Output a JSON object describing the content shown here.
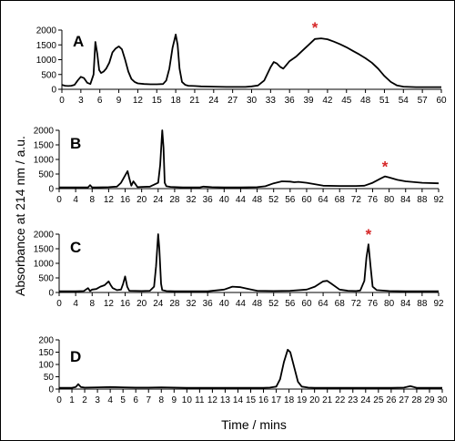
{
  "figure": {
    "ylabel": "Absorbance at 214 nm / a.u.",
    "xlabel": "Time / mins",
    "marker_color": "#d62728",
    "line_color": "#000000"
  },
  "chart_data": [
    {
      "type": "line",
      "panel": "A",
      "xlim": [
        0,
        60
      ],
      "ylim": [
        0,
        2000
      ],
      "xticks": [
        0,
        3,
        6,
        9,
        12,
        15,
        18,
        21,
        24,
        27,
        30,
        33,
        36,
        39,
        42,
        45,
        48,
        51,
        54,
        57,
        60
      ],
      "xtick_labels": [
        "0",
        "3",
        "6",
        "9",
        "12",
        "15",
        "18",
        "21",
        "24",
        "27",
        "30",
        "33",
        "36",
        "39",
        "42",
        "45",
        "48",
        "51",
        "54",
        "57",
        "60"
      ],
      "yticks": [
        0,
        500,
        1000,
        1500,
        2000
      ],
      "ytick_labels": [
        "0",
        "500",
        "1000",
        "1500",
        "2000"
      ],
      "marker": {
        "symbol": "*",
        "x": 40,
        "y": 1750
      },
      "series": [
        {
          "x": [
            0,
            0.5,
            1,
            1.5,
            2,
            2.5,
            3,
            3.5,
            4,
            4.5,
            5,
            5.3,
            5.6,
            5.9,
            6.2,
            6.6,
            7,
            7.5,
            8,
            8.5,
            9,
            9.5,
            10,
            10.5,
            11,
            11.5,
            12,
            13,
            14,
            15,
            16,
            16.5,
            17,
            17.5,
            18,
            18.3,
            18.6,
            19,
            19.5,
            20,
            21,
            22,
            24,
            26,
            28,
            29,
            30,
            31,
            32,
            33,
            33.5,
            34,
            34.5,
            35,
            35.5,
            36,
            37,
            38,
            39,
            40,
            41,
            42,
            43,
            44,
            45,
            46,
            47,
            48,
            49,
            50,
            51,
            52,
            53,
            54,
            55,
            56,
            57,
            58,
            59,
            60
          ],
          "y": [
            150,
            120,
            110,
            120,
            150,
            300,
            420,
            380,
            220,
            180,
            500,
            1600,
            1200,
            650,
            550,
            600,
            700,
            900,
            1250,
            1380,
            1450,
            1350,
            1000,
            600,
            350,
            250,
            200,
            180,
            170,
            170,
            180,
            300,
            700,
            1400,
            1850,
            1500,
            700,
            250,
            150,
            120,
            110,
            100,
            90,
            80,
            80,
            80,
            100,
            130,
            300,
            750,
            920,
            870,
            760,
            700,
            820,
            950,
            1100,
            1300,
            1500,
            1700,
            1720,
            1690,
            1610,
            1520,
            1420,
            1300,
            1180,
            1050,
            900,
            700,
            450,
            250,
            130,
            90,
            80,
            75,
            75,
            75,
            75,
            75
          ]
        }
      ]
    },
    {
      "type": "line",
      "panel": "B",
      "xlim": [
        0,
        92
      ],
      "ylim": [
        0,
        2000
      ],
      "xticks": [
        0,
        4,
        8,
        12,
        16,
        20,
        24,
        28,
        32,
        36,
        40,
        44,
        48,
        52,
        56,
        60,
        64,
        68,
        72,
        76,
        80,
        84,
        88,
        92
      ],
      "xtick_labels": [
        "0",
        "4",
        "8",
        "12",
        "16",
        "20",
        "24",
        "28",
        "32",
        "36",
        "40",
        "44",
        "48",
        "52",
        "56",
        "60",
        "64",
        "68",
        "72",
        "76",
        "80",
        "84",
        "88",
        "92"
      ],
      "yticks": [
        0,
        500,
        1000,
        1500,
        2000
      ],
      "ytick_labels": [
        "0",
        "500",
        "1000",
        "1500",
        "2000"
      ],
      "marker": {
        "symbol": "*",
        "x": 79,
        "y": 420
      },
      "series": [
        {
          "x": [
            0,
            4,
            7,
            7.5,
            8,
            9,
            12,
            14,
            15,
            16,
            16.6,
            17,
            17.5,
            18,
            18.5,
            19,
            20,
            22,
            24,
            24.5,
            25,
            25.3,
            25.6,
            26,
            27,
            30,
            34,
            35,
            37,
            40,
            44,
            48,
            50,
            52,
            54,
            56,
            57,
            58,
            60,
            64,
            68,
            72,
            74,
            76,
            78,
            79,
            80,
            82,
            84,
            88,
            92
          ],
          "y": [
            40,
            40,
            40,
            120,
            40,
            40,
            50,
            70,
            200,
            450,
            600,
            350,
            100,
            250,
            150,
            50,
            60,
            70,
            200,
            800,
            2000,
            1400,
            200,
            80,
            60,
            40,
            40,
            70,
            50,
            40,
            40,
            50,
            80,
            180,
            250,
            240,
            220,
            230,
            200,
            100,
            90,
            90,
            100,
            200,
            350,
            420,
            380,
            300,
            250,
            200,
            180
          ]
        }
      ]
    },
    {
      "type": "line",
      "panel": "C",
      "xlim": [
        0,
        92
      ],
      "ylim": [
        0,
        2000
      ],
      "xticks": [
        0,
        4,
        8,
        12,
        16,
        20,
        24,
        28,
        32,
        36,
        40,
        44,
        48,
        52,
        56,
        60,
        64,
        68,
        72,
        76,
        80,
        84,
        88,
        92
      ],
      "xtick_labels": [
        "0",
        "4",
        "8",
        "12",
        "16",
        "20",
        "24",
        "28",
        "32",
        "36",
        "40",
        "44",
        "48",
        "52",
        "56",
        "60",
        "64",
        "68",
        "72",
        "76",
        "80",
        "84",
        "88",
        "92"
      ],
      "yticks": [
        0,
        500,
        1000,
        1500,
        2000
      ],
      "ytick_labels": [
        "0",
        "500",
        "1000",
        "1500",
        "2000"
      ],
      "marker": {
        "symbol": "*",
        "x": 75,
        "y": 1650
      },
      "series": [
        {
          "x": [
            0,
            4,
            6,
            7,
            7.5,
            8,
            9,
            10,
            11,
            12,
            12.5,
            13,
            14,
            15,
            15.5,
            16,
            16.5,
            17,
            20,
            22,
            23,
            23.5,
            24,
            24.3,
            24.7,
            25,
            26,
            28,
            32,
            36,
            40,
            42,
            44,
            46,
            48,
            52,
            56,
            60,
            62,
            64,
            65,
            66,
            68,
            70,
            72,
            73,
            74,
            74.5,
            75,
            75.5,
            76,
            77,
            80,
            84,
            88,
            92
          ],
          "y": [
            40,
            40,
            50,
            150,
            50,
            100,
            120,
            200,
            250,
            380,
            250,
            150,
            80,
            100,
            300,
            550,
            200,
            60,
            50,
            60,
            200,
            900,
            2000,
            1500,
            300,
            80,
            50,
            40,
            40,
            40,
            100,
            200,
            180,
            120,
            60,
            50,
            60,
            100,
            200,
            380,
            400,
            300,
            100,
            60,
            50,
            70,
            400,
            1200,
            1650,
            900,
            200,
            80,
            50,
            40,
            40,
            40
          ]
        }
      ]
    },
    {
      "type": "line",
      "panel": "D",
      "xlim": [
        0,
        30
      ],
      "ylim": [
        0,
        200
      ],
      "xticks": [
        0,
        1,
        2,
        3,
        4,
        5,
        6,
        7,
        8,
        9,
        10,
        11,
        12,
        13,
        14,
        15,
        16,
        17,
        18,
        19,
        20,
        21,
        22,
        23,
        24,
        25,
        26,
        27,
        28,
        29,
        30
      ],
      "xtick_labels": [
        "0",
        "1",
        "2",
        "3",
        "4",
        "5",
        "6",
        "7",
        "8",
        "9",
        "10",
        "11",
        "12",
        "13",
        "14",
        "15",
        "16",
        "17",
        "18",
        "19",
        "20",
        "21",
        "22",
        "23",
        "24",
        "25",
        "26",
        "27",
        "28",
        "29",
        "30"
      ],
      "yticks": [
        0,
        50,
        100,
        150,
        200
      ],
      "ytick_labels": [
        "0",
        "50",
        "100",
        "150",
        "200"
      ],
      "marker": null,
      "series": [
        {
          "x": [
            0,
            1,
            1.3,
            1.5,
            1.7,
            2,
            3,
            4,
            5,
            6,
            7,
            8,
            9,
            10,
            11,
            12,
            13,
            14,
            15,
            16,
            16.5,
            17,
            17.3,
            17.6,
            17.9,
            18.1,
            18.4,
            18.7,
            19,
            19.5,
            20,
            22,
            24,
            26,
            27,
            27.5,
            28,
            29,
            30
          ],
          "y": [
            5,
            5,
            8,
            20,
            8,
            6,
            7,
            8,
            7,
            6,
            6,
            7,
            6,
            5,
            5,
            5,
            5,
            5,
            5,
            5,
            6,
            10,
            40,
            110,
            160,
            150,
            90,
            30,
            10,
            6,
            5,
            5,
            5,
            5,
            6,
            12,
            5,
            5,
            5
          ]
        }
      ]
    }
  ]
}
